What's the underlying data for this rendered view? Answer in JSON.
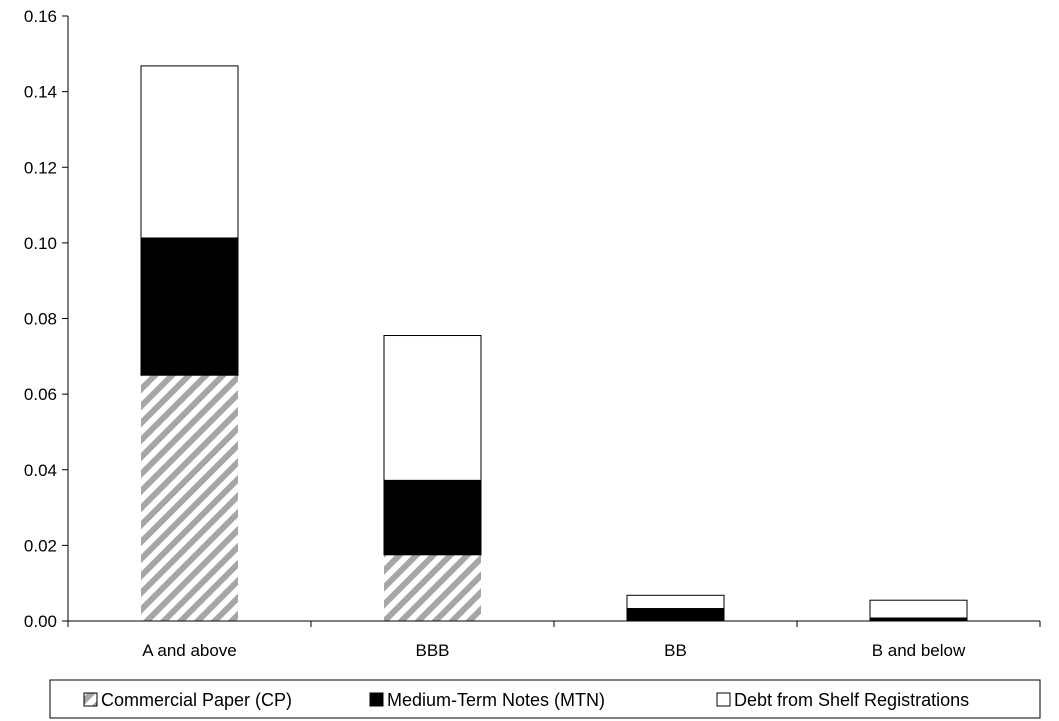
{
  "chart_data": {
    "type": "bar",
    "stacked": true,
    "title": "",
    "xlabel": "",
    "ylabel": "",
    "categories": [
      "A and above",
      "BBB",
      "BB",
      "B and below"
    ],
    "series": [
      {
        "name": "Commercial Paper (CP)",
        "values": [
          0.065,
          0.0175,
          0.0,
          0.0
        ],
        "fill": "hatch",
        "color": "#a6a6a6"
      },
      {
        "name": "Medium-Term Notes (MTN)",
        "values": [
          0.0363,
          0.0197,
          0.0033,
          0.0008
        ],
        "fill": "solid",
        "color": "#000000"
      },
      {
        "name": "Debt from Shelf Registrations",
        "values": [
          0.0455,
          0.0383,
          0.0035,
          0.0047
        ],
        "fill": "solid",
        "color": "#ffffff"
      }
    ],
    "ylim": [
      0,
      0.16
    ],
    "yticks": [
      "0.00",
      "0.02",
      "0.04",
      "0.06",
      "0.08",
      "0.10",
      "0.12",
      "0.14",
      "0.16"
    ],
    "grid": false,
    "legend_position": "bottom"
  }
}
